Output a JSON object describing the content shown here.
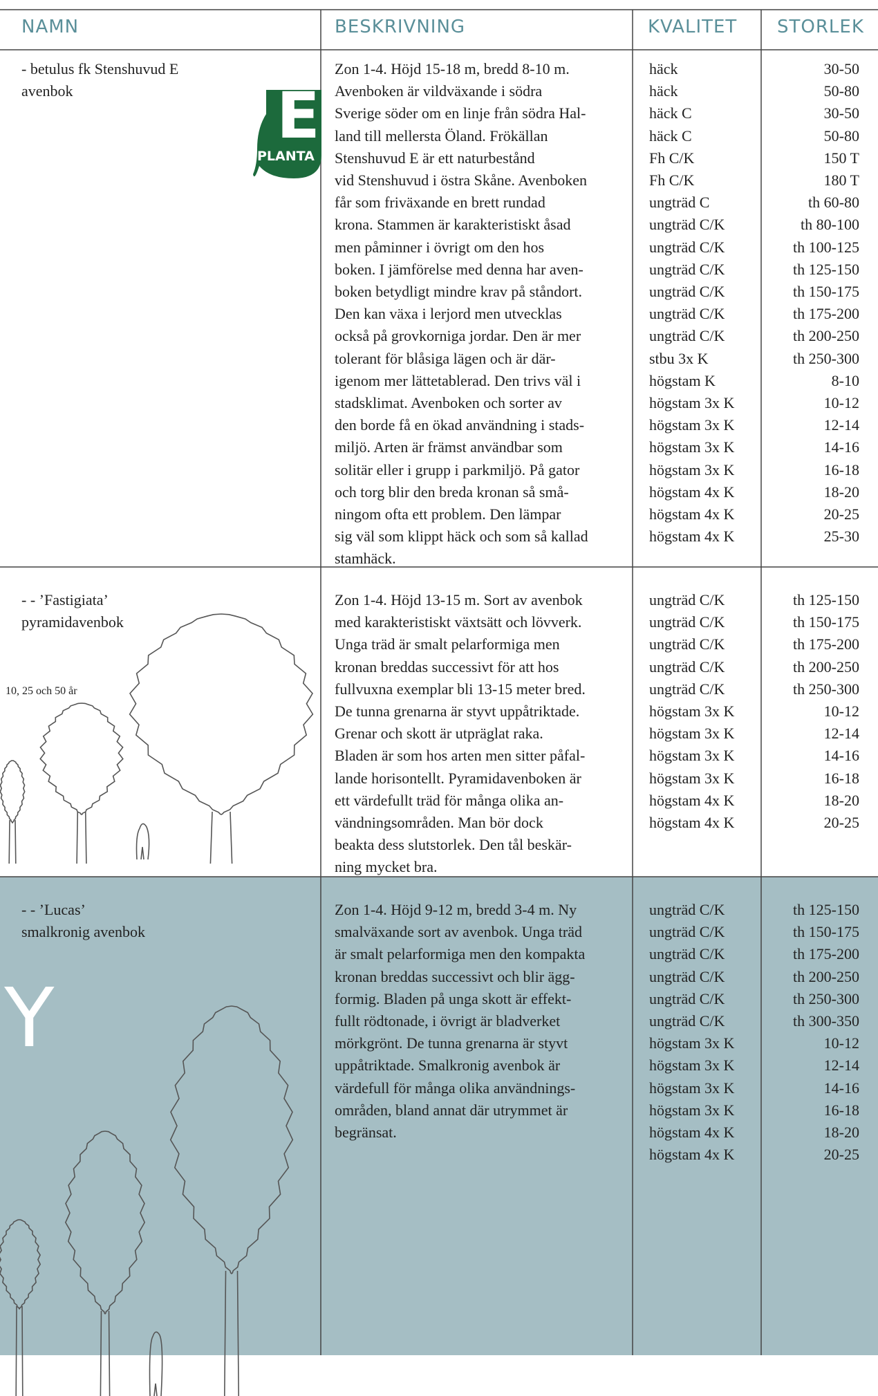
{
  "header": {
    "name": "NAMN",
    "description": "BESKRIVNING",
    "quality": "KVALITET",
    "size": "STORLEK"
  },
  "logo": {
    "letter": "E",
    "brand": "PLANTA"
  },
  "rows": [
    {
      "name": [
        "- betulus fk Stenshuvud E",
        "avenbok"
      ],
      "description": [
        "Zon 1-4. Höjd 15-18 m, bredd 8-10 m.",
        "Avenboken är vildväxande i södra",
        "Sverige söder om en linje från södra Hal-",
        "land till mellersta Öland. Frökällan",
        "Stenshuvud E är ett naturbestånd",
        "vid Stenshuvud i östra Skåne. Avenboken",
        "får som friväxande en brett rundad",
        "krona. Stammen är karakteristiskt åsad",
        "men påminner i övrigt om den hos",
        "boken. I jämförelse med denna har aven-",
        "boken betydligt mindre krav på ståndort.",
        "Den kan växa i lerjord men utvecklas",
        "också på grovkorniga jordar. Den är mer",
        "tolerant för blåsiga lägen och är där-",
        "igenom mer lättetablerad. Den trivs väl i",
        "stadsklimat. Avenboken och sorter av",
        "den borde få en ökad användning i stads-",
        "miljö. Arten är främst användbar som",
        "solitär eller i grupp i parkmiljö. På gator",
        "och torg blir den breda kronan så små-",
        "ningom ofta ett problem. Den lämpar",
        "sig väl som klippt häck och som så kallad",
        "stamhäck."
      ],
      "quality": [
        "häck",
        "häck",
        "häck C",
        "häck C",
        "Fh C/K",
        "Fh C/K",
        "ungträd C",
        "ungträd C/K",
        "ungträd C/K",
        "ungträd C/K",
        "ungträd C/K",
        "ungträd C/K",
        "ungträd C/K",
        "stbu 3x K",
        "högstam K",
        "högstam 3x K",
        "högstam 3x K",
        "högstam 3x K",
        "högstam 3x K",
        "högstam 4x K",
        "högstam 4x K",
        "högstam 4x K"
      ],
      "size": [
        "30-50",
        "50-80",
        "30-50",
        "50-80",
        "150 T",
        "180 T",
        "th 60-80",
        "th 80-100",
        "th 100-125",
        "th 125-150",
        "th 150-175",
        "th 175-200",
        "th 200-250",
        "th 250-300",
        "8-10",
        "10-12",
        "12-14",
        "14-16",
        "16-18",
        "18-20",
        "20-25",
        "25-30"
      ]
    },
    {
      "name": [
        "- - ’Fastigiata’",
        "pyramidavenbok"
      ],
      "caption": "10, 25 och 50 år",
      "description": [
        "Zon 1-4. Höjd 13-15 m. Sort av avenbok",
        "med karakteristiskt växtsätt och lövverk.",
        "Unga träd är smalt pelarformiga men",
        "kronan breddas successivt för att hos",
        "fullvuxna exemplar bli 13-15 meter bred.",
        "De tunna grenarna är styvt uppåtriktade.",
        "Grenar och skott är utpräglat raka.",
        "Bladen är som hos arten men sitter påfal-",
        "lande horisontellt. Pyramidavenboken är",
        "ett värdefullt träd för många olika an-",
        "vändningsområden. Man bör dock",
        "beakta dess slutstorlek. Den tål beskär-",
        "ning mycket bra."
      ],
      "quality": [
        "ungträd C/K",
        "ungträd C/K",
        "ungträd C/K",
        "ungträd C/K",
        "ungträd C/K",
        "högstam 3x K",
        "högstam 3x K",
        "högstam 3x K",
        "högstam 3x K",
        "högstam 4x K",
        "högstam 4x K"
      ],
      "size": [
        "th 125-150",
        "th 150-175",
        "th 175-200",
        "th 200-250",
        "th 250-300",
        "10-12",
        "12-14",
        "14-16",
        "16-18",
        "18-20",
        "20-25"
      ]
    },
    {
      "name": [
        "- - ’Lucas’",
        "smalkronig avenbok"
      ],
      "badge": "NY",
      "description": [
        "Zon 1-4. Höjd 9-12 m, bredd 3-4 m. Ny",
        "smalväxande sort av avenbok. Unga träd",
        "är smalt pelarformiga men den kompakta",
        "kronan breddas successivt och blir ägg-",
        "formig. Bladen på unga skott är effekt-",
        "fullt rödtonade, i övrigt är bladverket",
        "mörkgrönt. De tunna grenarna är styvt",
        "uppåtriktade. Smalkronig avenbok är",
        "värdefull för många olika användnings-",
        "områden, bland annat där utrymmet är",
        "begränsat."
      ],
      "quality": [
        "ungträd C/K",
        "ungträd C/K",
        "ungträd C/K",
        "ungträd C/K",
        "ungträd C/K",
        "ungträd C/K",
        "högstam 3x K",
        "högstam 3x K",
        "högstam 3x K",
        "högstam 3x K",
        "högstam 4x K",
        "högstam 4x K"
      ],
      "size": [
        "th 125-150",
        "th 150-175",
        "th 175-200",
        "th 200-250",
        "th 250-300",
        "th 300-350",
        "10-12",
        "12-14",
        "14-16",
        "16-18",
        "18-20",
        "20-25"
      ]
    }
  ]
}
